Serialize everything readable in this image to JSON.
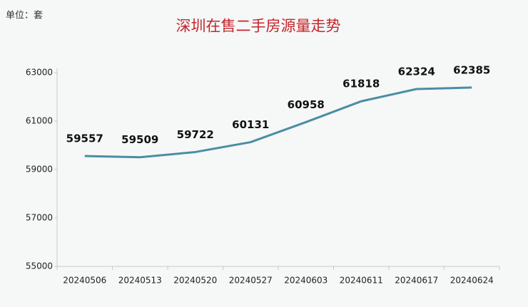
{
  "chart_data": {
    "type": "line",
    "title": "深圳在售二手房源量走势",
    "unit_label": "单位：套",
    "categories": [
      "20240506",
      "20240513",
      "20240520",
      "20240527",
      "20240603",
      "20240611",
      "20240617",
      "20240624"
    ],
    "values": [
      59557,
      59509,
      59722,
      60131,
      60958,
      61818,
      62324,
      62385
    ],
    "color": "#4a8ea3",
    "ylim": [
      55000,
      63000
    ],
    "yticks": [
      55000,
      57000,
      59000,
      61000,
      63000
    ],
    "grid": false
  }
}
